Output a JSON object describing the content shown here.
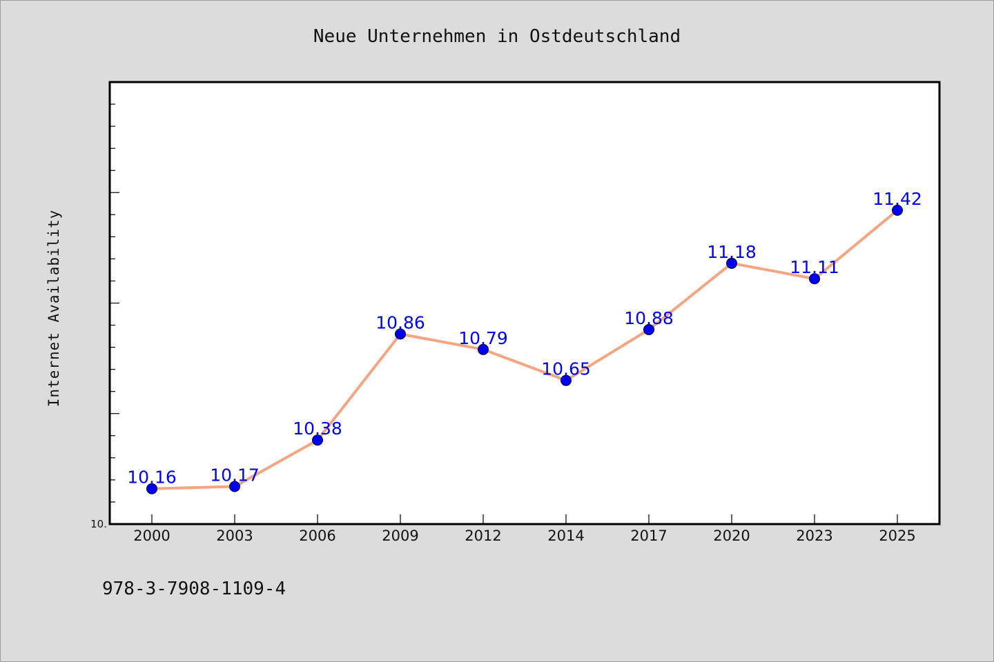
{
  "chart_data": {
    "type": "line",
    "title": "Neue Unternehmen in Ostdeutschland",
    "ylabel": "Internet Availability",
    "xlabel": "",
    "categories": [
      "2000",
      "2003",
      "2006",
      "2009",
      "2012",
      "2014",
      "2017",
      "2020",
      "2023",
      "2025"
    ],
    "values": [
      10.16,
      10.17,
      10.38,
      10.86,
      10.79,
      10.65,
      10.88,
      11.18,
      11.11,
      11.42
    ],
    "data_labels": [
      "10.16",
      "10.17",
      "10.38",
      "10.86",
      "10.79",
      "10.65",
      "10.88",
      "11.18",
      "11.11",
      "11.42"
    ],
    "ylim": [
      10.0,
      12.0
    ],
    "y_tick_labels": [
      "10."
    ],
    "grid": false,
    "legend": "none",
    "colors": {
      "line": "#f4a582",
      "marker": "#0000ee",
      "data_label": "#0000ee",
      "background": "#dcdcdc",
      "plot_background": "#ffffff"
    }
  },
  "footer": {
    "isbn": "978-3-7908-1109-4"
  }
}
